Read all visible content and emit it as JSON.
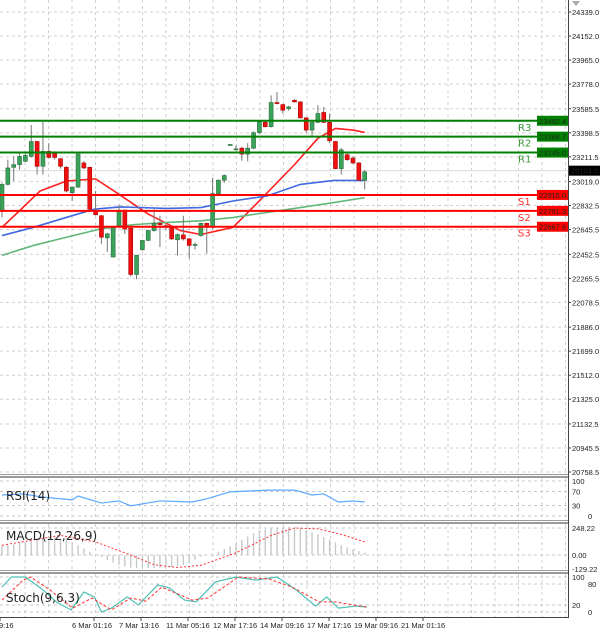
{
  "chart_data": [
    {
      "type": "candlestick",
      "title": "",
      "price_axis_ticks": [
        "24339.0",
        "24152.0",
        "23965.0",
        "23778.0",
        "23585.5",
        "23398.5",
        "23211.5",
        "23019.0",
        "22832.5",
        "22645.5",
        "22452.5",
        "22265.5",
        "22078.5",
        "21886.0",
        "21699.0",
        "21512.0",
        "21325.0",
        "21132.5",
        "20945.5",
        "20758.5"
      ],
      "ylim": [
        20758.5,
        24339.0
      ],
      "grid": true,
      "time_axis_ticks": [
        "9:16",
        "6 Mar 01:16",
        "7 Mar 13:16",
        "11 Mar 05:16",
        "12 Mar 17:16",
        "14 Mar 09:16",
        "17 Mar 17:16",
        "19 Mar 09:16",
        "21 Mar 01:16"
      ],
      "current_price": {
        "label": "23104.0",
        "value": 23104.0,
        "color": "#000000"
      },
      "levels": [
        {
          "name": "R3",
          "value": 23492.4,
          "label": "23492.4",
          "color": "#008000"
        },
        {
          "name": "R2",
          "value": 23368.7,
          "label": "23368.7",
          "color": "#008000"
        },
        {
          "name": "R1",
          "value": 23245.0,
          "label": "23245.0",
          "color": "#008000"
        },
        {
          "name": "S1",
          "value": 22915.0,
          "label": "22915.0",
          "color": "#ff0000"
        },
        {
          "name": "S2",
          "value": 22791.3,
          "label": "22791.3",
          "color": "#ff0000"
        },
        {
          "name": "S3",
          "value": 22667.6,
          "label": "22667.6",
          "color": "#ff0000"
        }
      ],
      "candles_ohlc": [
        [
          22792,
          23010,
          22740,
          22997
        ],
        [
          22997,
          23190,
          22990,
          23125
        ],
        [
          23130,
          23215,
          23023,
          23151
        ],
        [
          23151,
          23241,
          23112,
          23215
        ],
        [
          23177,
          23240,
          23170,
          23223
        ],
        [
          23215,
          23459,
          23207,
          23331
        ],
        [
          23331,
          23336,
          23074,
          23138
        ],
        [
          23138,
          23485,
          23074,
          23254
        ],
        [
          23254,
          23318,
          23200,
          23207
        ],
        [
          23246,
          23255,
          23190,
          23207
        ],
        [
          23197,
          23200,
          23120,
          23138
        ],
        [
          23130,
          23140,
          22935,
          22946
        ],
        [
          22933,
          22980,
          22869,
          22976
        ],
        [
          22976,
          23240,
          22970,
          23233
        ],
        [
          23164,
          23180,
          23115,
          23125
        ],
        [
          23130,
          23135,
          22790,
          22804
        ],
        [
          22792,
          22946,
          22755,
          22761
        ],
        [
          22753,
          22760,
          22535,
          22586
        ],
        [
          22581,
          22620,
          22471,
          22612
        ],
        [
          22432,
          22670,
          22430,
          22663
        ],
        [
          22676,
          22843,
          22670,
          22792
        ],
        [
          22797,
          22800,
          22612,
          22650
        ],
        [
          22656,
          22660,
          22280,
          22296
        ],
        [
          22296,
          22450,
          22258,
          22445
        ],
        [
          22489,
          22565,
          22480,
          22561
        ],
        [
          22561,
          22645,
          22555,
          22638
        ],
        [
          22638,
          22804,
          22630,
          22694
        ],
        [
          22694,
          22753,
          22509,
          22684
        ],
        [
          22676,
          22690,
          22640,
          22663
        ],
        [
          22663,
          22670,
          22565,
          22573
        ],
        [
          22566,
          22615,
          22445,
          22607
        ],
        [
          22604,
          22753,
          22560,
          22573
        ],
        [
          22573,
          22580,
          22419,
          22522
        ],
        [
          22527,
          22545,
          22490,
          22530
        ],
        [
          22599,
          22700,
          22590,
          22694
        ],
        [
          22694,
          22700,
          22458,
          22663
        ],
        [
          22663,
          23048,
          22650,
          22925
        ],
        [
          22925,
          23035,
          22910,
          23030
        ],
        [
          23030,
          23075,
          23010,
          23066
        ],
        [
          23305,
          23310,
          23300,
          23308
        ],
        [
          23272,
          23300,
          23260,
          23274
        ],
        [
          23279,
          23290,
          23182,
          23233
        ],
        [
          23233,
          23318,
          23177,
          23279
        ],
        [
          23279,
          23410,
          23270,
          23400
        ],
        [
          23400,
          23495,
          23390,
          23485
        ],
        [
          23480,
          23490,
          23440,
          23446
        ],
        [
          23446,
          23690,
          23440,
          23634
        ],
        [
          23634,
          23716,
          23620,
          23626
        ],
        [
          23618,
          23625,
          23549,
          23575
        ],
        [
          23587,
          23610,
          23570,
          23600
        ],
        [
          23652,
          23660,
          23635,
          23639
        ],
        [
          23639,
          23645,
          23510,
          23515
        ],
        [
          23515,
          23520,
          23400,
          23420
        ],
        [
          23420,
          23485,
          23369,
          23480
        ],
        [
          23480,
          23613,
          23475,
          23549
        ],
        [
          23557,
          23600,
          23475,
          23480
        ],
        [
          23480,
          23549,
          23318,
          23336
        ],
        [
          23331,
          23335,
          23115,
          23120
        ],
        [
          23120,
          23280,
          23074,
          23266
        ],
        [
          23228,
          23240,
          23180,
          23190
        ],
        [
          23202,
          23215,
          23155,
          23164
        ],
        [
          23164,
          23170,
          23020,
          23030
        ],
        [
          23028,
          23110,
          22958,
          23095
        ]
      ],
      "moving_averages": [
        {
          "color": "#ff2020",
          "points": [
            [
              0,
              22663
            ],
            [
              3,
              22792
            ],
            [
              6.5,
              22946
            ],
            [
              11,
              23023
            ],
            [
              16,
              23040
            ],
            [
              20,
              22920
            ],
            [
              25,
              22766
            ],
            [
              30.5,
              22638
            ],
            [
              34,
              22607
            ],
            [
              39.5,
              22663
            ],
            [
              44,
              22869
            ],
            [
              50,
              23151
            ],
            [
              54,
              23356
            ],
            [
              57,
              23433
            ],
            [
              60,
              23420
            ],
            [
              62,
              23402
            ]
          ]
        },
        {
          "color": "#4169e1",
          "points": [
            [
              0,
              22599
            ],
            [
              5.4,
              22663
            ],
            [
              11,
              22740
            ],
            [
              15.7,
              22804
            ],
            [
              20.2,
              22822
            ],
            [
              28.2,
              22810
            ],
            [
              34,
              22817
            ],
            [
              39.6,
              22869
            ],
            [
              45.3,
              22907
            ],
            [
              51,
              22997
            ],
            [
              56.7,
              23028
            ],
            [
              62,
              23028
            ]
          ]
        },
        {
          "color": "#5fb87a",
          "points": [
            [
              0,
              22445
            ],
            [
              5.4,
              22522
            ],
            [
              11,
              22586
            ],
            [
              16.8,
              22650
            ],
            [
              22.5,
              22684
            ],
            [
              28.2,
              22701
            ],
            [
              34,
              22714
            ],
            [
              39.6,
              22740
            ],
            [
              45.3,
              22779
            ],
            [
              51,
              22817
            ],
            [
              56.7,
              22856
            ],
            [
              62,
              22894
            ]
          ]
        }
      ]
    },
    {
      "type": "line",
      "name": "RSI(14)",
      "ticks": [
        "100",
        "70",
        "30",
        "0"
      ],
      "ylim": [
        0,
        100
      ],
      "levels": [
        70,
        30
      ],
      "color": "#5aa9ff",
      "points": [
        [
          0,
          60
        ],
        [
          3.6,
          63
        ],
        [
          7,
          54
        ],
        [
          12,
          46
        ],
        [
          13,
          57
        ],
        [
          17,
          37
        ],
        [
          20,
          43
        ],
        [
          22,
          29
        ],
        [
          27,
          43
        ],
        [
          32.5,
          40
        ],
        [
          35,
          49
        ],
        [
          39,
          69
        ],
        [
          45.7,
          74
        ],
        [
          50,
          74
        ],
        [
          53,
          60
        ],
        [
          55,
          63
        ],
        [
          57.5,
          40
        ],
        [
          60,
          43
        ],
        [
          62,
          40
        ]
      ]
    },
    {
      "type": "bar+line",
      "name": "MACD(12,26,9)",
      "ticks": [
        "248.22",
        "0.00",
        "-129.22"
      ],
      "ylim": [
        -129.22,
        248.22
      ],
      "histogram_color": "#c8c8c8",
      "signal_color": "#ff3030",
      "histogram": [
        90,
        95,
        100,
        110,
        120,
        130,
        140,
        150,
        160,
        160,
        150,
        135,
        115,
        90,
        60,
        30,
        5,
        -20,
        -45,
        -70,
        -90,
        -105,
        -115,
        -120,
        -122,
        -122,
        -120,
        -118,
        -115,
        -110,
        -100,
        -90,
        -75,
        -45,
        -15,
        -5,
        10,
        30,
        55,
        80,
        110,
        140,
        170,
        200,
        220,
        235,
        245,
        252,
        256,
        258,
        255,
        245,
        230,
        210,
        190,
        165,
        140,
        115,
        90,
        70,
        50,
        35,
        20
      ],
      "signal": [
        [
          0,
          90
        ],
        [
          10,
          180
        ],
        [
          16,
          120
        ],
        [
          22,
          0
        ],
        [
          26,
          -90
        ],
        [
          30,
          -115
        ],
        [
          34,
          -95
        ],
        [
          40,
          20
        ],
        [
          46,
          180
        ],
        [
          50,
          248
        ],
        [
          54,
          240
        ],
        [
          58,
          190
        ],
        [
          62,
          120
        ]
      ]
    },
    {
      "type": "line",
      "name": "Stoch(9,6,3)",
      "ticks": [
        "100",
        "80",
        "20",
        "0"
      ],
      "ylim": [
        0,
        100
      ],
      "levels": [
        80,
        20
      ],
      "main_color": "#4dc0b5",
      "signal_color": "#ff3030",
      "main": [
        [
          0,
          71
        ],
        [
          1.6,
          100
        ],
        [
          4,
          100
        ],
        [
          7,
          63
        ],
        [
          9.5,
          26
        ],
        [
          11.8,
          6
        ],
        [
          14,
          57
        ],
        [
          15.8,
          43
        ],
        [
          17,
          0
        ],
        [
          18.7,
          11
        ],
        [
          21.4,
          43
        ],
        [
          23.3,
          20
        ],
        [
          26.6,
          77
        ],
        [
          28.6,
          69
        ],
        [
          31.2,
          34
        ],
        [
          33.2,
          29
        ],
        [
          36.5,
          86
        ],
        [
          40,
          100
        ],
        [
          43.4,
          91
        ],
        [
          47,
          100
        ],
        [
          50.3,
          63
        ],
        [
          53.6,
          17
        ],
        [
          55.5,
          43
        ],
        [
          57.5,
          11
        ],
        [
          60.5,
          17
        ],
        [
          62.4,
          14
        ]
      ],
      "signal": [
        [
          0,
          34
        ],
        [
          3.6,
          91
        ],
        [
          4.9,
          100
        ],
        [
          8.2,
          63
        ],
        [
          12.1,
          11
        ],
        [
          15.4,
          40
        ],
        [
          18.7,
          6
        ],
        [
          22,
          40
        ],
        [
          24.6,
          31
        ],
        [
          27.3,
          71
        ],
        [
          32.5,
          34
        ],
        [
          35.2,
          40
        ],
        [
          40.4,
          100
        ],
        [
          45.7,
          94
        ],
        [
          49.6,
          71
        ],
        [
          54.2,
          29
        ],
        [
          56.9,
          29
        ],
        [
          62.4,
          14
        ]
      ]
    }
  ]
}
